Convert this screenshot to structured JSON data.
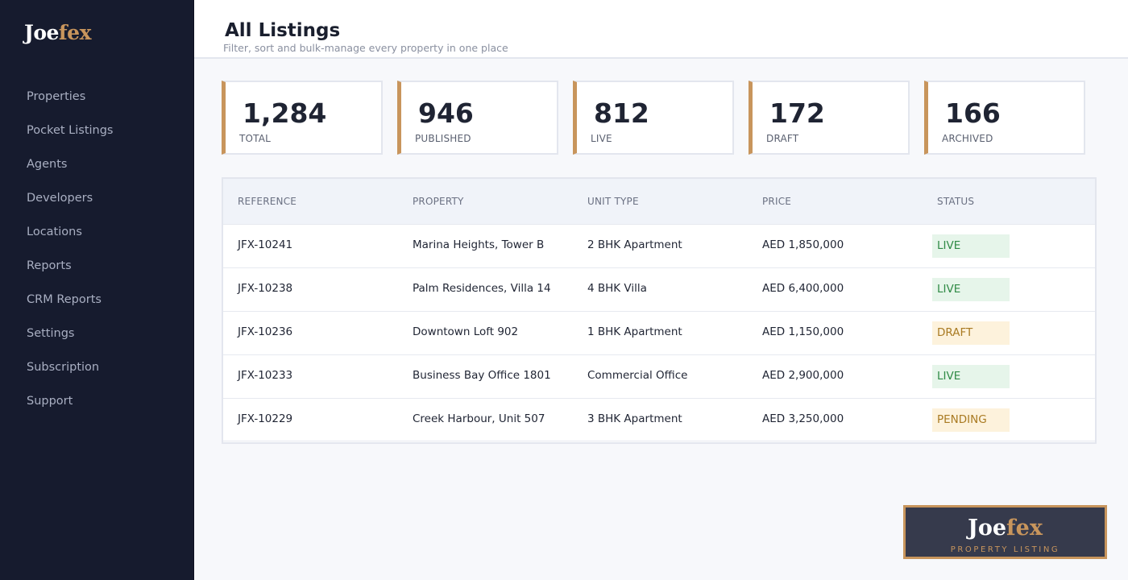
{
  "logo": {
    "part1": "Joe",
    "part2": "fex"
  },
  "nav": [
    "Properties",
    "Pocket Listings",
    "Agents",
    "Developers",
    "Locations",
    "Reports",
    "CRM Reports",
    "Settings",
    "Subscription",
    "Support"
  ],
  "header": {
    "title": "All Listings",
    "subtitle": "Filter, sort and bulk-manage every property in one place"
  },
  "stats": [
    {
      "value": "1,284",
      "label": "TOTAL"
    },
    {
      "value": "946",
      "label": "PUBLISHED"
    },
    {
      "value": "812",
      "label": "LIVE"
    },
    {
      "value": "172",
      "label": "DRAFT"
    },
    {
      "value": "166",
      "label": "ARCHIVED"
    }
  ],
  "table": {
    "columns": [
      "REFERENCE",
      "PROPERTY",
      "UNIT TYPE",
      "PRICE",
      "STATUS"
    ],
    "rows": [
      {
        "ref": "JFX-10241",
        "property": "Marina Heights, Tower B",
        "unit": "2 BHK Apartment",
        "price": "AED 1,850,000",
        "status": "LIVE"
      },
      {
        "ref": "JFX-10238",
        "property": "Palm Residences, Villa 14",
        "unit": "4 BHK Villa",
        "price": "AED 6,400,000",
        "status": "LIVE"
      },
      {
        "ref": "JFX-10236",
        "property": "Downtown Loft 902",
        "unit": "1 BHK Apartment",
        "price": "AED 1,150,000",
        "status": "DRAFT"
      },
      {
        "ref": "JFX-10233",
        "property": "Business Bay Office 1801",
        "unit": "Commercial Office",
        "price": "AED 2,900,000",
        "status": "LIVE"
      },
      {
        "ref": "JFX-10229",
        "property": "Creek Harbour, Unit 507",
        "unit": "3 BHK Apartment",
        "price": "AED 3,250,000",
        "status": "PENDING"
      }
    ]
  },
  "status_colors": {
    "LIVE": {
      "bg": "#e6f5ea",
      "fg": "#2f8a45"
    },
    "DRAFT": {
      "bg": "#fdf2dc",
      "fg": "#a97a22"
    },
    "PENDING": {
      "bg": "#fdf2dc",
      "fg": "#a97a22"
    }
  },
  "brand_card": {
    "part1": "Joe",
    "part2": "fex",
    "tagline": "PROPERTY LISTING"
  },
  "colors": {
    "accent": "#c8955c",
    "sidebar": "#161b2e"
  }
}
